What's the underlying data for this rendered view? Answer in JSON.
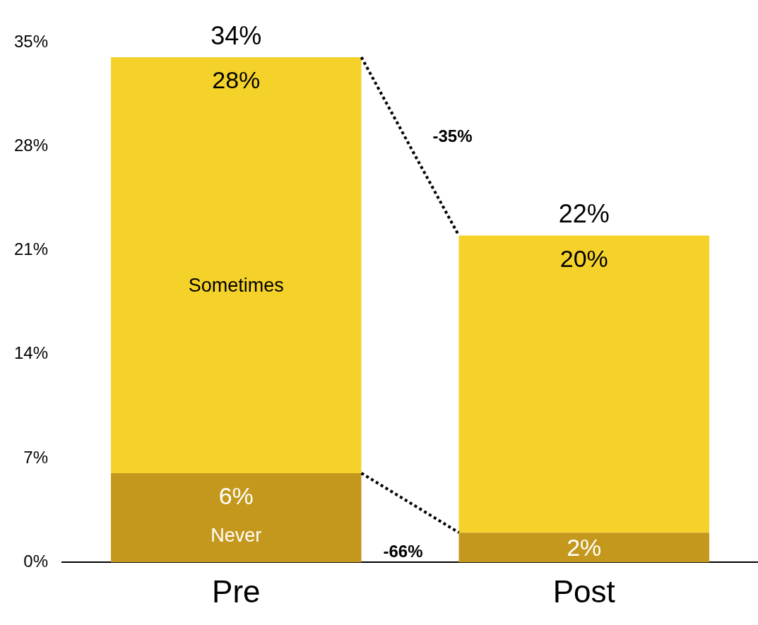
{
  "chart_data": {
    "type": "bar",
    "stacked": true,
    "categories": [
      "Pre",
      "Post"
    ],
    "series": [
      {
        "name": "Never",
        "color": "#c4981c",
        "values": [
          6,
          2
        ],
        "value_labels": [
          "6%",
          "2%"
        ]
      },
      {
        "name": "Sometimes",
        "color": "#f5d22a",
        "values": [
          28,
          20
        ],
        "value_labels": [
          "28%",
          "20%"
        ]
      }
    ],
    "totals": [
      "34%",
      "22%"
    ],
    "ylim": [
      0,
      35
    ],
    "yticks": [
      {
        "value": 0,
        "label": "0%"
      },
      {
        "value": 7,
        "label": "7%"
      },
      {
        "value": 14,
        "label": "14%"
      },
      {
        "value": 21,
        "label": "21%"
      },
      {
        "value": 28,
        "label": "28%"
      },
      {
        "value": 35,
        "label": "35%"
      }
    ],
    "annotations": [
      "-35%",
      "-66%"
    ],
    "grid": false,
    "legend": false
  }
}
